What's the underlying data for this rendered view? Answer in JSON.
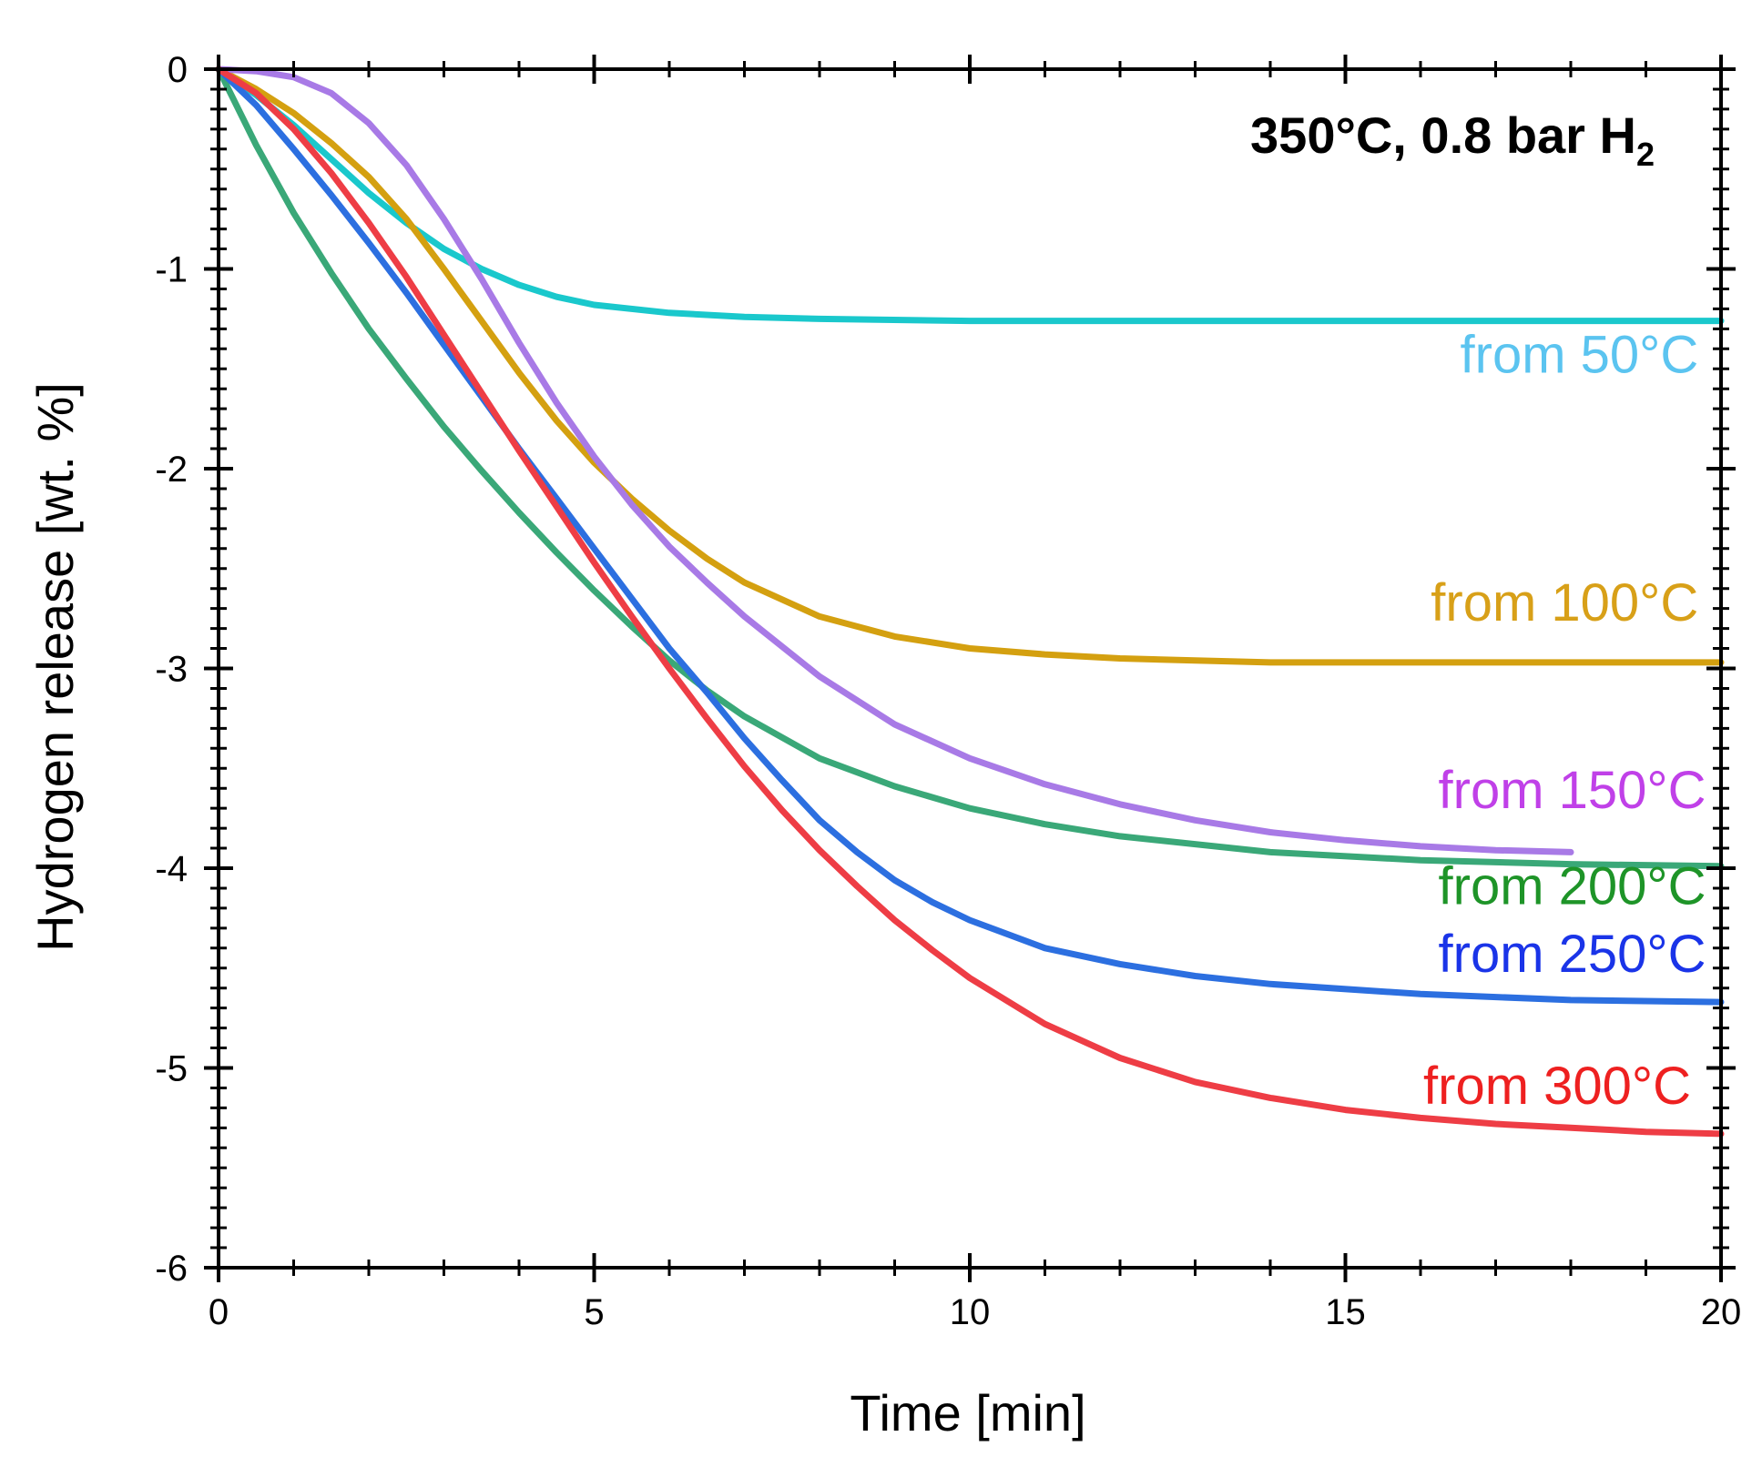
{
  "chart_data": {
    "type": "line",
    "title": "",
    "annotation": {
      "main": "350°C, 0.8 bar H",
      "subscript": "2"
    },
    "xlabel": "Time [min]",
    "ylabel": "Hydrogen release [wt. %]",
    "xlim": [
      0,
      20
    ],
    "ylim": [
      -6,
      0
    ],
    "xticks": [
      0,
      5,
      10,
      15,
      20
    ],
    "xtick_labels": [
      "0",
      "5",
      "10",
      "15",
      "20"
    ],
    "yticks": [
      0,
      -1,
      -2,
      -3,
      -4,
      -5,
      -6
    ],
    "ytick_labels": [
      "0",
      "-1",
      "-2",
      "-3",
      "-4",
      "-5",
      "-6"
    ],
    "grid": false,
    "series": [
      {
        "name": "from 50°C",
        "line_color": "#1ac8cc",
        "label_color": "#5bc4f0",
        "label_position": {
          "x": 19.7,
          "y": -1.52
        },
        "x": [
          0,
          0.5,
          1,
          1.5,
          2,
          2.5,
          3,
          3.5,
          4,
          4.5,
          5,
          6,
          7,
          8,
          10,
          12,
          14,
          16,
          18,
          20
        ],
        "y": [
          0,
          -0.13,
          -0.28,
          -0.45,
          -0.62,
          -0.77,
          -0.9,
          -1.0,
          -1.08,
          -1.14,
          -1.18,
          -1.22,
          -1.24,
          -1.25,
          -1.26,
          -1.26,
          -1.26,
          -1.26,
          -1.26,
          -1.26
        ]
      },
      {
        "name": "from 100°C",
        "line_color": "#d4a010",
        "label_color": "#d8a018",
        "label_position": {
          "x": 19.7,
          "y": -2.76
        },
        "x": [
          0,
          0.5,
          1,
          1.5,
          2,
          2.5,
          3,
          3.5,
          4,
          4.5,
          5,
          5.5,
          6,
          6.5,
          7,
          8,
          9,
          10,
          11,
          12,
          13,
          14,
          15,
          16,
          18,
          20
        ],
        "y": [
          0,
          -0.1,
          -0.22,
          -0.37,
          -0.54,
          -0.75,
          -1.0,
          -1.26,
          -1.52,
          -1.76,
          -1.97,
          -2.15,
          -2.31,
          -2.45,
          -2.57,
          -2.74,
          -2.84,
          -2.9,
          -2.93,
          -2.95,
          -2.96,
          -2.97,
          -2.97,
          -2.97,
          -2.97,
          -2.97
        ]
      },
      {
        "name": "from 150°C",
        "line_color": "#a87ae6",
        "label_color": "#c040e8",
        "label_position": {
          "x": 19.8,
          "y": -3.7
        },
        "x": [
          0,
          0.5,
          1,
          1.5,
          2,
          2.5,
          3,
          3.5,
          4,
          4.5,
          5,
          5.5,
          6,
          6.5,
          7,
          8,
          9,
          10,
          11,
          12,
          13,
          14,
          15,
          16,
          17,
          18
        ],
        "y": [
          0,
          -0.01,
          -0.04,
          -0.12,
          -0.27,
          -0.48,
          -0.75,
          -1.05,
          -1.37,
          -1.67,
          -1.94,
          -2.18,
          -2.39,
          -2.57,
          -2.74,
          -3.04,
          -3.28,
          -3.45,
          -3.58,
          -3.68,
          -3.76,
          -3.82,
          -3.86,
          -3.89,
          -3.91,
          -3.92
        ]
      },
      {
        "name": "from 200°C",
        "line_color": "#3aa878",
        "label_color": "#1e9428",
        "label_position": {
          "x": 19.8,
          "y": -4.18
        },
        "x": [
          0,
          0.5,
          1,
          1.5,
          2,
          2.5,
          3,
          3.5,
          4,
          4.5,
          5,
          5.5,
          6,
          6.5,
          7,
          8,
          9,
          10,
          11,
          12,
          14,
          16,
          18,
          20
        ],
        "y": [
          0,
          -0.38,
          -0.72,
          -1.02,
          -1.3,
          -1.55,
          -1.79,
          -2.01,
          -2.22,
          -2.42,
          -2.61,
          -2.79,
          -2.96,
          -3.11,
          -3.24,
          -3.45,
          -3.59,
          -3.7,
          -3.78,
          -3.84,
          -3.92,
          -3.96,
          -3.98,
          -3.99
        ]
      },
      {
        "name": "from 250°C",
        "line_color": "#2c6fe0",
        "label_color": "#1a34e8",
        "label_position": {
          "x": 19.8,
          "y": -4.52
        },
        "x": [
          0,
          0.5,
          1,
          1.5,
          2,
          2.5,
          3,
          3.5,
          4,
          4.5,
          5,
          5.5,
          6,
          6.5,
          7,
          7.5,
          8,
          8.5,
          9,
          9.5,
          10,
          11,
          12,
          13,
          14,
          16,
          18,
          20
        ],
        "y": [
          0,
          -0.18,
          -0.4,
          -0.63,
          -0.87,
          -1.12,
          -1.38,
          -1.64,
          -1.9,
          -2.15,
          -2.4,
          -2.65,
          -2.9,
          -3.12,
          -3.35,
          -3.56,
          -3.76,
          -3.92,
          -4.06,
          -4.17,
          -4.26,
          -4.4,
          -4.48,
          -4.54,
          -4.58,
          -4.63,
          -4.66,
          -4.67
        ]
      },
      {
        "name": "from 300°C",
        "line_color": "#ee3d45",
        "label_color": "#ee2020",
        "label_position": {
          "x": 19.6,
          "y": -5.18
        },
        "x": [
          0,
          0.5,
          1,
          1.5,
          2,
          2.5,
          3,
          3.5,
          4,
          4.5,
          5,
          5.5,
          6,
          6.5,
          7,
          7.5,
          8,
          8.5,
          9,
          9.5,
          10,
          11,
          12,
          13,
          14,
          15,
          16,
          17,
          18,
          19,
          20
        ],
        "y": [
          0,
          -0.12,
          -0.3,
          -0.52,
          -0.77,
          -1.04,
          -1.33,
          -1.62,
          -1.91,
          -2.19,
          -2.47,
          -2.74,
          -3.0,
          -3.25,
          -3.49,
          -3.71,
          -3.91,
          -4.09,
          -4.26,
          -4.41,
          -4.55,
          -4.78,
          -4.95,
          -5.07,
          -5.15,
          -5.21,
          -5.25,
          -5.28,
          -5.3,
          -5.32,
          -5.33
        ]
      }
    ]
  }
}
